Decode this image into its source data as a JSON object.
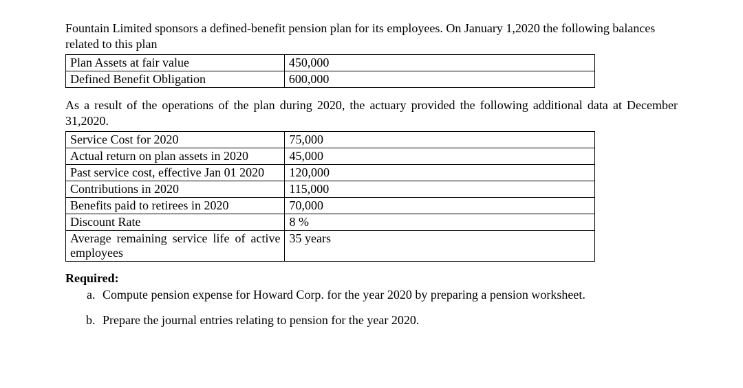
{
  "intro_para_1": "Fountain Limited sponsors a defined-benefit pension plan for its employees. On January 1,2020 the following balances related to this plan",
  "table1": {
    "rows": [
      {
        "label": "Plan Assets at fair value",
        "value": "450,000"
      },
      {
        "label": "Defined Benefit Obligation",
        "value": "600,000"
      }
    ]
  },
  "intro_para_2": "As a result of the operations of the plan during 2020, the actuary provided the following additional data at December 31,2020.",
  "table2": {
    "rows": [
      {
        "label": "Service Cost for 2020",
        "value": "75,000"
      },
      {
        "label": "Actual return on plan assets in 2020",
        "value": "45,000"
      },
      {
        "label": "Past service cost, effective Jan 01 2020",
        "value": "120,000"
      },
      {
        "label": "Contributions in 2020",
        "value": "115,000"
      },
      {
        "label": "Benefits paid to retirees in 2020",
        "value": "70,000"
      },
      {
        "label": "Discount Rate",
        "value": "8 %"
      },
      {
        "label": "Average remaining service life of active employees",
        "value": "35 years",
        "justify": true
      }
    ]
  },
  "required_heading": "Required:",
  "required_items": [
    "Compute pension expense for Howard Corp. for the year 2020 by preparing a pension worksheet.",
    "Prepare the journal entries relating to pension for the year 2020."
  ]
}
